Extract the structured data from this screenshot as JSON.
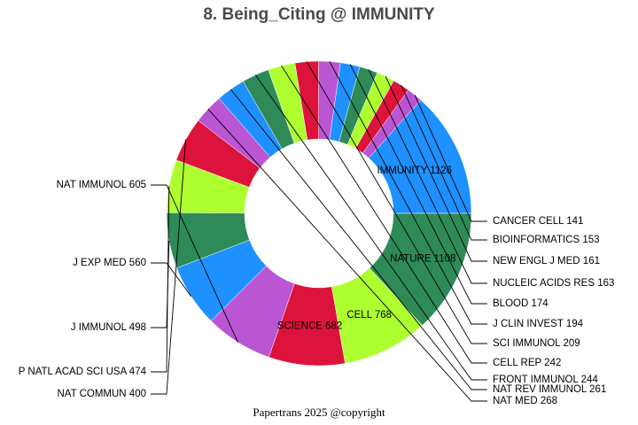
{
  "chart_data": {
    "type": "pie",
    "title": "8. Being_Citing @ IMMUNITY",
    "donut": true,
    "slices": [
      {
        "label": "IMMUNITY",
        "value": 1126,
        "color": "#1e90ff"
      },
      {
        "label": "CANCER CELL",
        "value": 141,
        "color": "#ba55d3"
      },
      {
        "label": "BIOINFORMATICS",
        "value": 153,
        "color": "#dc143c"
      },
      {
        "label": "NEW ENGL J MED",
        "value": 161,
        "color": "#adff2f"
      },
      {
        "label": "NUCLEIC ACIDS RES",
        "value": 163,
        "color": "#2e8b57"
      },
      {
        "label": "BLOOD",
        "value": 174,
        "color": "#1e90ff"
      },
      {
        "label": "J CLIN INVEST",
        "value": 194,
        "color": "#ba55d3"
      },
      {
        "label": "SCI IMMUNOL",
        "value": 209,
        "color": "#dc143c"
      },
      {
        "label": "CELL REP",
        "value": 242,
        "color": "#adff2f"
      },
      {
        "label": "FRONT IMMUNOL",
        "value": 244,
        "color": "#2e8b57"
      },
      {
        "label": "NAT REV IMMUNOL",
        "value": 261,
        "color": "#1e90ff"
      },
      {
        "label": "NAT MED",
        "value": 268,
        "color": "#ba55d3"
      },
      {
        "label": "NAT COMMUN",
        "value": 400,
        "color": "#dc143c"
      },
      {
        "label": "P NATL ACAD SCI USA",
        "value": 474,
        "color": "#adff2f"
      },
      {
        "label": "J IMMUNOL",
        "value": 498,
        "color": "#2e8b57"
      },
      {
        "label": "J EXP MED",
        "value": 560,
        "color": "#1e90ff"
      },
      {
        "label": "NAT IMMUNOL",
        "value": 605,
        "color": "#ba55d3"
      },
      {
        "label": "SCIENCE",
        "value": 682,
        "color": "#dc143c"
      },
      {
        "label": "CELL",
        "value": 768,
        "color": "#adff2f"
      },
      {
        "label": "NATURE",
        "value": 1108,
        "color": "#2e8b57"
      }
    ]
  },
  "footer": "Papertrans 2025 @copyright"
}
